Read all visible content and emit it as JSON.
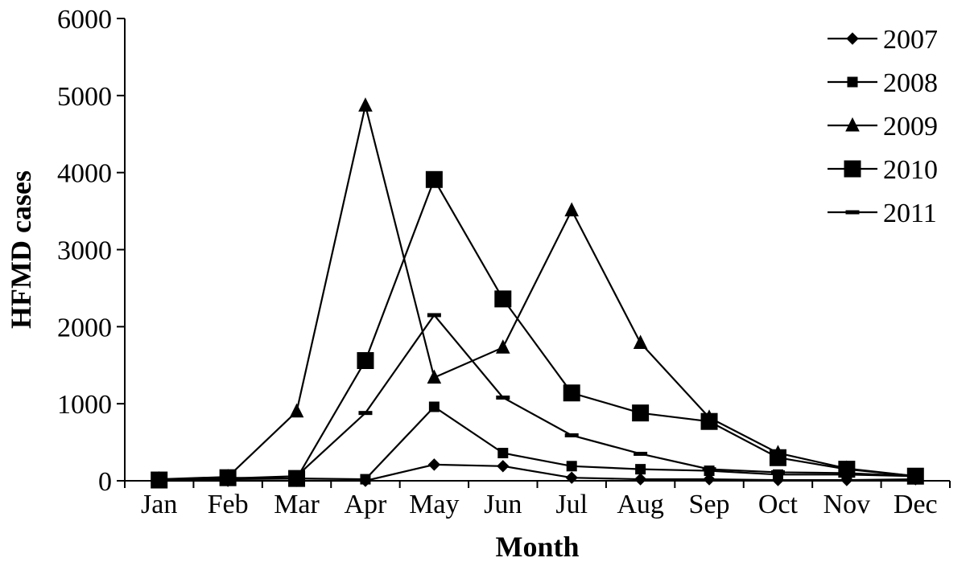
{
  "chart_data": {
    "type": "line",
    "xlabel": "Month",
    "ylabel": "HFMD cases",
    "categories": [
      "Jan",
      "Feb",
      "Mar",
      "Apr",
      "May",
      "Jun",
      "Jul",
      "Aug",
      "Sep",
      "Oct",
      "Nov",
      "Dec"
    ],
    "ylim": [
      0,
      6000
    ],
    "yticks": [
      0,
      1000,
      2000,
      3000,
      4000,
      5000,
      6000
    ],
    "grid": false,
    "legend_position": "top-right",
    "series": [
      {
        "name": "2007",
        "marker": "diamond",
        "values": [
          0,
          0,
          0,
          0,
          210,
          190,
          40,
          20,
          20,
          10,
          10,
          20
        ]
      },
      {
        "name": "2008",
        "marker": "small-square",
        "values": [
          10,
          20,
          30,
          20,
          960,
          360,
          190,
          150,
          130,
          80,
          80,
          60
        ]
      },
      {
        "name": "2009",
        "marker": "triangle",
        "values": [
          20,
          50,
          900,
          4870,
          1340,
          1730,
          3510,
          1790,
          820,
          360,
          160,
          60
        ]
      },
      {
        "name": "2010",
        "marker": "large-square",
        "values": [
          10,
          40,
          30,
          1560,
          3910,
          2360,
          1140,
          880,
          770,
          300,
          150,
          60
        ]
      },
      {
        "name": "2011",
        "marker": "dash",
        "values": [
          10,
          30,
          60,
          880,
          2150,
          1080,
          590,
          350,
          150,
          110,
          100,
          60
        ]
      }
    ]
  }
}
